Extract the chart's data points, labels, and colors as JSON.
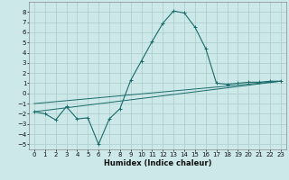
{
  "xlabel": "Humidex (Indice chaleur)",
  "bg_color": "#cce8e8",
  "grid_color": "#aacccc",
  "line_color": "#1a6b6b",
  "xlim": [
    -0.5,
    23.5
  ],
  "ylim": [
    -5.5,
    9.0
  ],
  "yticks": [
    -5,
    -4,
    -3,
    -2,
    -1,
    0,
    1,
    2,
    3,
    4,
    5,
    6,
    7,
    8
  ],
  "xticks": [
    0,
    1,
    2,
    3,
    4,
    5,
    6,
    7,
    8,
    9,
    10,
    11,
    12,
    13,
    14,
    15,
    16,
    17,
    18,
    19,
    20,
    21,
    22,
    23
  ],
  "series1_x": [
    0,
    1,
    2,
    3,
    4,
    5,
    6,
    7,
    8,
    9,
    10,
    11,
    12,
    13,
    14,
    15,
    16,
    17,
    18,
    19,
    20,
    21,
    22,
    23
  ],
  "series1_y": [
    -1.8,
    -2.0,
    -2.6,
    -1.3,
    -2.5,
    -2.4,
    -5.0,
    -2.5,
    -1.5,
    1.3,
    3.2,
    5.1,
    6.9,
    8.1,
    7.9,
    6.5,
    4.4,
    1.0,
    0.9,
    1.0,
    1.1,
    1.1,
    1.2,
    1.2
  ],
  "series2_x": [
    0,
    23
  ],
  "series2_y": [
    -1.8,
    1.2
  ],
  "series3_x": [
    0,
    23
  ],
  "series3_y": [
    -1.0,
    1.2
  ],
  "xlabel_fontsize": 6.0,
  "tick_fontsize": 5.0
}
